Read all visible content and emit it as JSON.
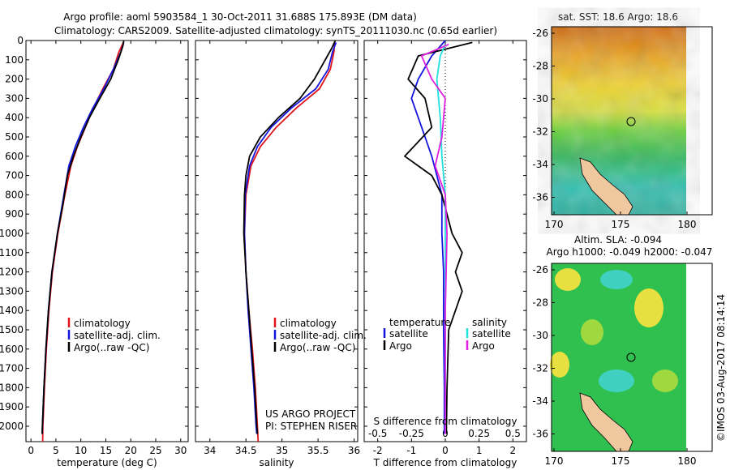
{
  "header": {
    "line1": "Argo profile: aoml 5903584_1 30-Oct-2011 31.688S 175.893E (DM data)",
    "line2": "Climatology: CARS2009. Satellite-adjusted climatology: synTS_20111030.nc (0.65d earlier)"
  },
  "colors": {
    "climatology": "#e0141c",
    "satellite": "#1414e0",
    "argo": "#000000",
    "salinity_sat": "#20e0e0",
    "salinity_argo": "#e020e0"
  },
  "chart_data": [
    {
      "type": "line",
      "xlabel": "temperature (deg C)",
      "xlim": [
        -1,
        31.5
      ],
      "xticks": [
        "0",
        "5",
        "10",
        "15",
        "20",
        "25",
        "30"
      ],
      "ylim": [
        0,
        2080
      ],
      "yticks": [
        "0",
        "100",
        "200",
        "300",
        "400",
        "500",
        "600",
        "700",
        "800",
        "900",
        "1000",
        "1100",
        "1200",
        "1300",
        "1400",
        "1500",
        "1600",
        "1700",
        "1800",
        "1900",
        "2000"
      ],
      "legend": [
        "climatology",
        "satellite-adj. clim.",
        "Argo(..raw -QC)"
      ],
      "series": [
        {
          "name": "climatology",
          "color": "#e0141c",
          "points": [
            [
              18.5,
              10
            ],
            [
              17.6,
              60
            ],
            [
              16.5,
              150
            ],
            [
              14.4,
              250
            ],
            [
              12.5,
              350
            ],
            [
              10.9,
              450
            ],
            [
              9.3,
              550
            ],
            [
              8,
              650
            ],
            [
              6.8,
              800
            ],
            [
              5.4,
              1000
            ],
            [
              4.3,
              1200
            ],
            [
              3.6,
              1400
            ],
            [
              3.1,
              1600
            ],
            [
              2.7,
              1800
            ],
            [
              2.4,
              2000
            ],
            [
              2.35,
              2080
            ]
          ]
        },
        {
          "name": "satellite-adj. clim.",
          "color": "#1414e0",
          "points": [
            [
              18.6,
              10
            ],
            [
              18,
              60
            ],
            [
              16.5,
              150
            ],
            [
              14.6,
              250
            ],
            [
              12.4,
              350
            ],
            [
              10.5,
              450
            ],
            [
              8.9,
              550
            ],
            [
              7.6,
              650
            ],
            [
              6.6,
              800
            ],
            [
              5.3,
              1000
            ],
            [
              4.2,
              1200
            ],
            [
              3.5,
              1400
            ],
            [
              3.0,
              1600
            ],
            [
              2.6,
              1800
            ],
            [
              2.3,
              2000
            ],
            [
              2.25,
              2040
            ]
          ]
        },
        {
          "name": "Argo(..raw -QC)",
          "color": "#000000",
          "points": [
            [
              18.6,
              0
            ],
            [
              18.4,
              30
            ],
            [
              17.5,
              100
            ],
            [
              16,
              200
            ],
            [
              13.8,
              300
            ],
            [
              11.7,
              400
            ],
            [
              10,
              500
            ],
            [
              8.5,
              600
            ],
            [
              7.3,
              700
            ],
            [
              6.4,
              850
            ],
            [
              5.3,
              1000
            ],
            [
              4.2,
              1200
            ],
            [
              3.5,
              1400
            ],
            [
              3.0,
              1600
            ],
            [
              2.6,
              1800
            ],
            [
              2.3,
              2000
            ],
            [
              2.25,
              2040
            ]
          ]
        }
      ]
    },
    {
      "type": "line",
      "xlabel": "salinity",
      "xlim": [
        33.8,
        36.05
      ],
      "xticks": [
        "34",
        "34.5",
        "35",
        "35.5",
        "36"
      ],
      "ylim": [
        0,
        2080
      ],
      "legend": [
        "climatology",
        "satellite-adj. clim.",
        "Argo(..raw -QC)"
      ],
      "annotation": [
        "US ARGO PROJECT",
        "PI: STEPHEN RISER"
      ],
      "series": [
        {
          "name": "climatology",
          "color": "#e0141c",
          "points": [
            [
              35.73,
              10
            ],
            [
              35.72,
              60
            ],
            [
              35.67,
              150
            ],
            [
              35.52,
              250
            ],
            [
              35.2,
              350
            ],
            [
              34.92,
              450
            ],
            [
              34.7,
              550
            ],
            [
              34.57,
              650
            ],
            [
              34.5,
              800
            ],
            [
              34.48,
              1000
            ],
            [
              34.5,
              1200
            ],
            [
              34.54,
              1400
            ],
            [
              34.59,
              1600
            ],
            [
              34.63,
              1800
            ],
            [
              34.66,
              2000
            ],
            [
              34.67,
              2080
            ]
          ]
        },
        {
          "name": "satellite-adj. clim.",
          "color": "#1414e0",
          "points": [
            [
              35.75,
              10
            ],
            [
              35.7,
              60
            ],
            [
              35.64,
              150
            ],
            [
              35.47,
              250
            ],
            [
              35.13,
              350
            ],
            [
              34.85,
              450
            ],
            [
              34.66,
              550
            ],
            [
              34.55,
              650
            ],
            [
              34.49,
              800
            ],
            [
              34.48,
              1000
            ],
            [
              34.5,
              1200
            ],
            [
              34.53,
              1400
            ],
            [
              34.57,
              1600
            ],
            [
              34.61,
              1800
            ],
            [
              34.64,
              2000
            ],
            [
              34.65,
              2040
            ]
          ]
        },
        {
          "name": "Argo(..raw -QC)",
          "color": "#000000",
          "points": [
            [
              35.74,
              0
            ],
            [
              35.69,
              40
            ],
            [
              35.6,
              100
            ],
            [
              35.45,
              200
            ],
            [
              35.25,
              300
            ],
            [
              34.95,
              400
            ],
            [
              34.7,
              500
            ],
            [
              34.55,
              600
            ],
            [
              34.5,
              700
            ],
            [
              34.48,
              800
            ],
            [
              34.47,
              1000
            ],
            [
              34.5,
              1200
            ],
            [
              34.54,
              1400
            ],
            [
              34.58,
              1600
            ],
            [
              34.62,
              1800
            ],
            [
              34.65,
              2000
            ],
            [
              34.66,
              2040
            ]
          ]
        }
      ]
    },
    {
      "type": "line",
      "xlabel": "T difference from climatology",
      "x2label": "S difference from climatology",
      "xlim": [
        -2.4,
        2.4
      ],
      "xticks": [
        "-2",
        "-1",
        "0",
        "1",
        "2"
      ],
      "x2ticks": [
        "-0.5",
        "-0.25",
        "0",
        "0.25",
        "0.5"
      ],
      "ylim": [
        0,
        2080
      ],
      "legend": {
        "temperature": [
          "satellite",
          "Argo"
        ],
        "salinity": [
          "satellite",
          "Argo"
        ]
      },
      "legend_headers": [
        "temperature",
        "salinity"
      ],
      "series": [
        {
          "name": "satellite",
          "color": "#1414e0",
          "points": [
            [
              0,
              0
            ],
            [
              -0.4,
              80
            ],
            [
              -0.8,
              200
            ],
            [
              -1.0,
              300
            ],
            [
              -0.8,
              400
            ],
            [
              -0.6,
              500
            ],
            [
              -0.4,
              600
            ],
            [
              -0.25,
              700
            ],
            [
              -0.1,
              800
            ],
            [
              -0.1,
              1000
            ],
            [
              -0.05,
              1200
            ],
            [
              -0.05,
              1500
            ],
            [
              -0.03,
              1800
            ],
            [
              -0.03,
              2040
            ]
          ]
        },
        {
          "name": "Argo",
          "color": "#000000",
          "points": [
            [
              0.8,
              10
            ],
            [
              -0.8,
              80
            ],
            [
              -1.1,
              200
            ],
            [
              -0.6,
              300
            ],
            [
              -0.4,
              450
            ],
            [
              -1.2,
              600
            ],
            [
              -0.4,
              700
            ],
            [
              -0.1,
              800
            ],
            [
              0.2,
              1000
            ],
            [
              0.5,
              1100
            ],
            [
              0.3,
              1200
            ],
            [
              0.5,
              1300
            ],
            [
              0.1,
              1500
            ],
            [
              0.05,
              1800
            ],
            [
              0.03,
              2040
            ]
          ]
        },
        {
          "name": "salinity satellite",
          "color": "#20e0e0",
          "points": [
            [
              0,
              20
            ],
            [
              -0.15,
              80
            ],
            [
              -0.25,
              200
            ],
            [
              -0.15,
              400
            ],
            [
              -0.1,
              600
            ],
            [
              0,
              800
            ],
            [
              0,
              1200
            ],
            [
              0,
              1600
            ],
            [
              0,
              2040
            ]
          ]
        },
        {
          "name": "salinity Argo",
          "color": "#e020e0",
          "points": [
            [
              0.1,
              20
            ],
            [
              -0.7,
              80
            ],
            [
              -0.4,
              200
            ],
            [
              0,
              300
            ],
            [
              -0.1,
              500
            ],
            [
              -0.3,
              650
            ],
            [
              0,
              800
            ],
            [
              0.05,
              1000
            ],
            [
              0,
              1400
            ],
            [
              0,
              2040
            ]
          ]
        }
      ]
    }
  ],
  "maps": [
    {
      "title_lines": [
        "sat. SST: 18.6  Argo: 18.6"
      ],
      "xticks": [
        "170",
        "175",
        "180"
      ],
      "yticks": [
        "-26",
        "-28",
        "-30",
        "-32",
        "-34",
        "-36"
      ]
    },
    {
      "title_lines": [
        "Altim. SLA: -0.094",
        "Argo h1000: -0.049 h2000: -0.047"
      ],
      "xticks": [
        "170",
        "175",
        "180"
      ],
      "yticks": [
        "-26",
        "-28",
        "-30",
        "-32",
        "-34",
        "-36"
      ]
    }
  ],
  "footer_stamp": "©IMOS 03-Aug-2017 08:14:14"
}
